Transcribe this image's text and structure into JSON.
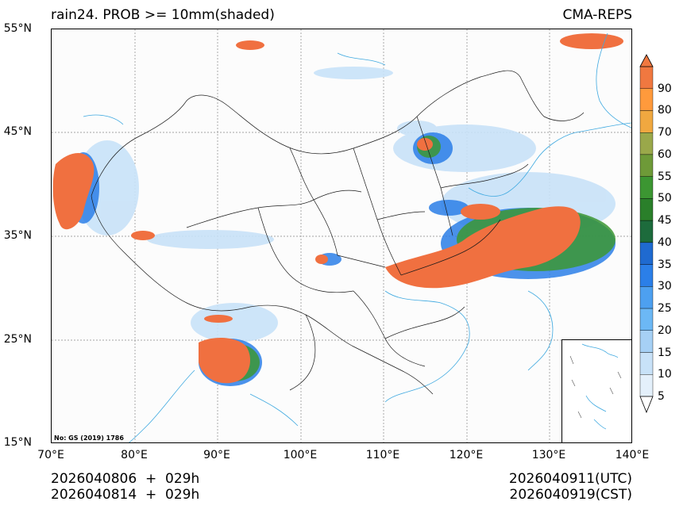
{
  "title_left": "rain24. PROB >= 10mm(shaded)",
  "title_right": "CMA-REPS",
  "lat_ticks": [
    "55°N",
    "45°N",
    "35°N",
    "25°N",
    "15°N"
  ],
  "lon_ticks": [
    "70°E",
    "80°E",
    "90°E",
    "100°E",
    "110°E",
    "120°E",
    "130°E",
    "140°E"
  ],
  "colorbar": {
    "labels": [
      "90",
      "80",
      "70",
      "60",
      "55",
      "50",
      "45",
      "40",
      "35",
      "30",
      "25",
      "20",
      "15",
      "10",
      "5"
    ],
    "colors": [
      "#f07840",
      "#ff9a3c",
      "#f0a840",
      "#9aa84a",
      "#6e9a38",
      "#3c9632",
      "#2a7f2a",
      "#1d6b3c",
      "#1f6ad0",
      "#2b7fe8",
      "#4da0f0",
      "#6cb8f5",
      "#a6d0f5",
      "#c8e2f8",
      "#e4f0fb"
    ]
  },
  "footer": {
    "init_utc": "2026040806  +  029h",
    "init_cst": "2026040814  +  029h",
    "valid_utc": "2026040911(UTC)",
    "valid_cst": "2026040919(CST)"
  },
  "gs_note": "No: GS (2019) 1786",
  "colors": {
    "high_prob": "#f07040",
    "coast": "#3fa9e0",
    "border": "#1a1a1a",
    "grid": "#888888"
  }
}
